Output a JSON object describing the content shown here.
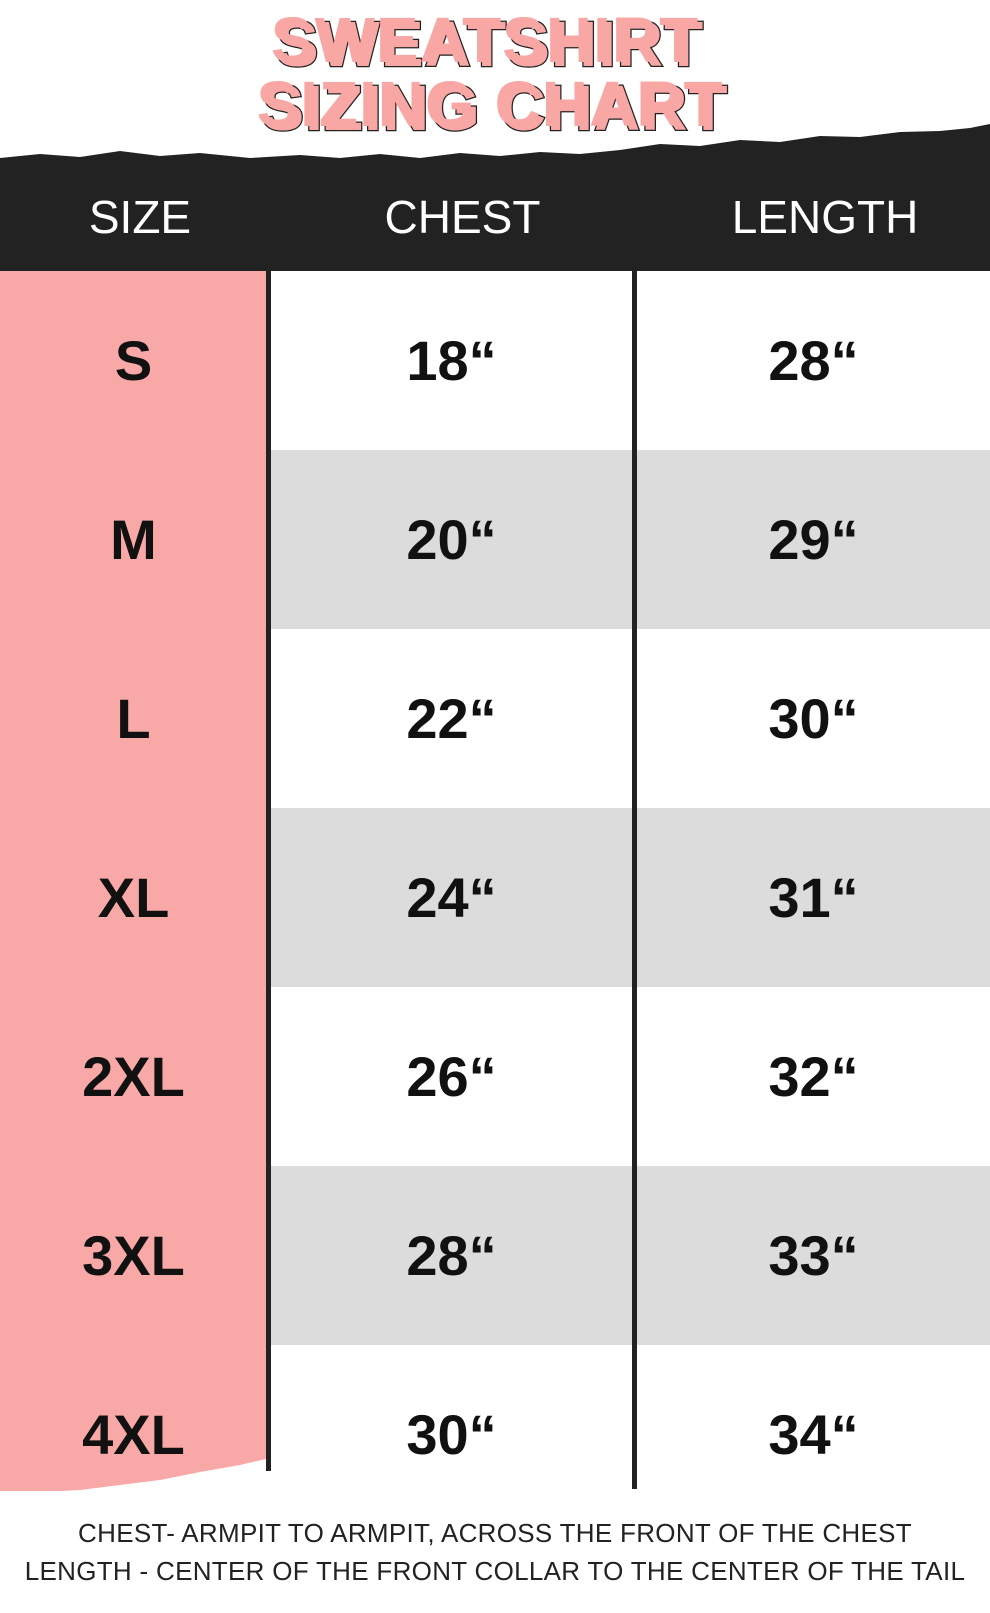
{
  "title": {
    "line1": "SWEATSHIRT",
    "line2": "SIZING CHART"
  },
  "colors": {
    "accent_pink": "#f8a9a7",
    "header_dark": "#222222",
    "row_gray": "#dcdcdc"
  },
  "table": {
    "headers": [
      "SIZE",
      "CHEST",
      "LENGTH"
    ],
    "rows": [
      {
        "size": "S",
        "chest": "18“",
        "length": "28“"
      },
      {
        "size": "M",
        "chest": "20“",
        "length": "29“"
      },
      {
        "size": "L",
        "chest": "22“",
        "length": "30“"
      },
      {
        "size": "XL",
        "chest": "24“",
        "length": "31“"
      },
      {
        "size": "2XL",
        "chest": "26“",
        "length": "32“"
      },
      {
        "size": "3XL",
        "chest": "28“",
        "length": "33“"
      },
      {
        "size": "4XL",
        "chest": "30“",
        "length": "34“"
      }
    ]
  },
  "footer": {
    "chest_note": "CHEST- ARMPIT TO ARMPIT, ACROSS THE FRONT OF THE CHEST",
    "length_note": "LENGTH - CENTER OF THE FRONT COLLAR TO THE CENTER OF THE TAIL"
  }
}
